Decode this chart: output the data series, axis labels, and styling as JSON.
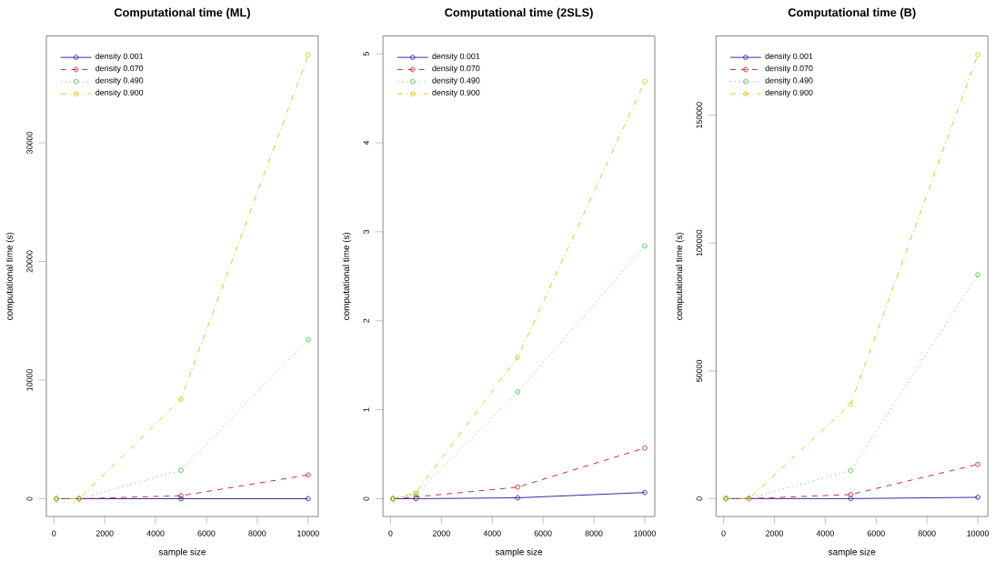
{
  "chart_data": [
    {
      "type": "line",
      "title": "Computational time (ML)",
      "xlabel": "sample size",
      "ylabel": "computational time (s)",
      "x": [
        100,
        1000,
        5000,
        10000
      ],
      "xlim": [
        -296,
        10396
      ],
      "ylim": [
        -1500,
        39000
      ],
      "xticks": [
        0,
        2000,
        4000,
        6000,
        8000,
        10000
      ],
      "yticks": [
        0,
        10000,
        20000,
        30000
      ],
      "legend": "top left",
      "marker": "circle",
      "series": [
        {
          "name": "density 0.001",
          "color": "#2e2e9e",
          "line_style": "solid",
          "values": [
            0,
            0,
            0,
            0
          ]
        },
        {
          "name": "density 0.070",
          "color": "#cc2b2b",
          "line_style": "dashed",
          "values": [
            0,
            0,
            250,
            2000
          ]
        },
        {
          "name": "density 0.490",
          "color": "#44cc44",
          "line_style": "dotted",
          "values": [
            0,
            0,
            2400,
            13400
          ]
        },
        {
          "name": "density 0.900",
          "color": "#cccc22",
          "line_style": "dashdot",
          "values": [
            0,
            0,
            8400,
            37400
          ]
        }
      ]
    },
    {
      "type": "line",
      "title": "Computational time (2SLS)",
      "xlabel": "sample size",
      "ylabel": "computational time (s)",
      "x": [
        100,
        1000,
        5000,
        10000
      ],
      "xlim": [
        -296,
        10396
      ],
      "ylim": [
        -0.2,
        5.2
      ],
      "xticks": [
        0,
        2000,
        4000,
        6000,
        8000,
        10000
      ],
      "yticks": [
        0,
        1,
        2,
        3,
        4,
        5
      ],
      "legend": "top left",
      "marker": "circle",
      "series": [
        {
          "name": "density 0.001",
          "color": "#2e2e9e",
          "line_style": "solid",
          "values": [
            0,
            0,
            0.01,
            0.07
          ]
        },
        {
          "name": "density 0.070",
          "color": "#cc2b2b",
          "line_style": "dashed",
          "values": [
            0,
            0.02,
            0.13,
            0.57
          ]
        },
        {
          "name": "density 0.490",
          "color": "#44cc44",
          "line_style": "dotted",
          "values": [
            0,
            0.05,
            1.2,
            2.84
          ]
        },
        {
          "name": "density 0.900",
          "color": "#cccc22",
          "line_style": "dashdot",
          "values": [
            0,
            0.07,
            1.59,
            4.69
          ]
        }
      ]
    },
    {
      "type": "line",
      "title": "Computational time (B)",
      "xlabel": "sample size",
      "ylabel": "computational time (s)",
      "x": [
        100,
        1000,
        5000,
        10000
      ],
      "xlim": [
        -296,
        10396
      ],
      "ylim": [
        -7000,
        181000
      ],
      "xticks": [
        0,
        2000,
        4000,
        6000,
        8000,
        10000
      ],
      "yticks": [
        0,
        50000,
        100000,
        150000
      ],
      "legend": "top left",
      "marker": "circle",
      "series": [
        {
          "name": "density 0.001",
          "color": "#2e2e9e",
          "line_style": "solid",
          "values": [
            0,
            0,
            0,
            500
          ]
        },
        {
          "name": "density 0.070",
          "color": "#cc2b2b",
          "line_style": "dashed",
          "values": [
            0,
            0,
            1600,
            13400
          ]
        },
        {
          "name": "density 0.490",
          "color": "#44cc44",
          "line_style": "dotted",
          "values": [
            0,
            0,
            11000,
            87600
          ]
        },
        {
          "name": "density 0.900",
          "color": "#cccc22",
          "line_style": "dashdot",
          "values": [
            0,
            0,
            36900,
            173700
          ]
        }
      ]
    }
  ]
}
